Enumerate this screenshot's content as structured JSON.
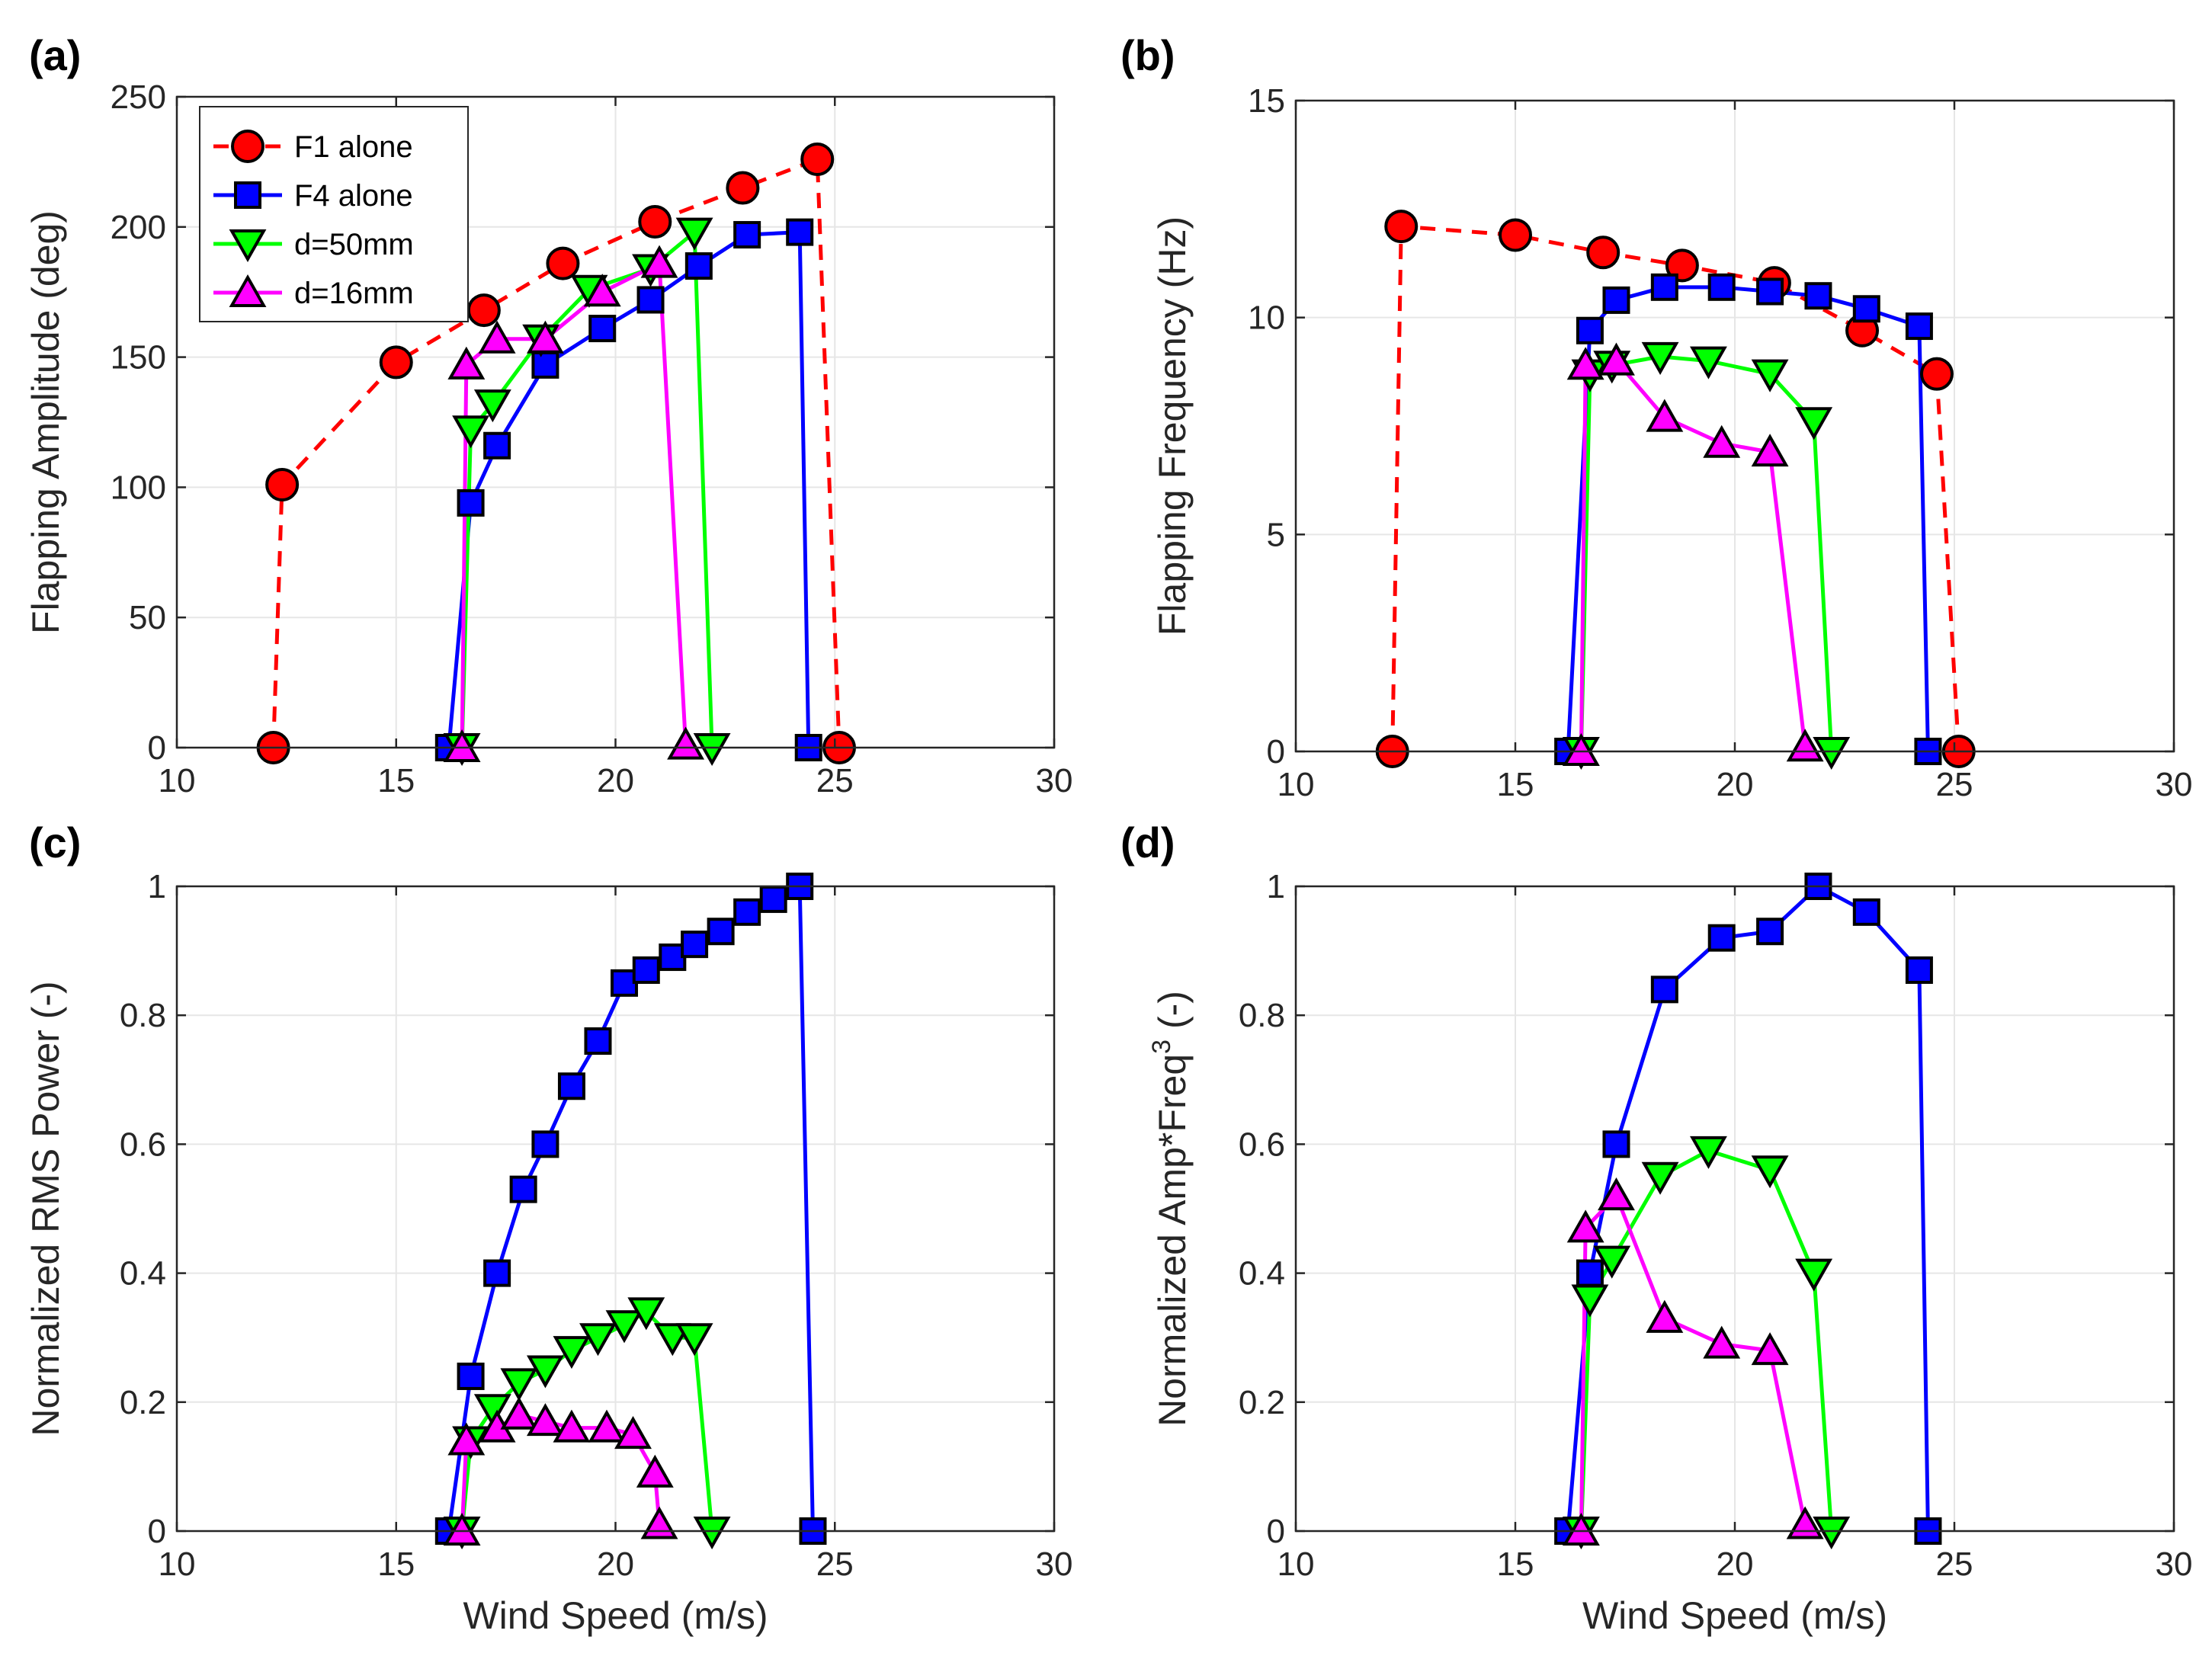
{
  "colors": {
    "F1": "#ff0000",
    "F4": "#0000ff",
    "d50": "#00ff00",
    "d16": "#ff00ff",
    "marker_edge": "#000000",
    "grid": "#e6e6e6"
  },
  "legend": {
    "location": "top-left",
    "panel": "a"
  },
  "chart_data": [
    {
      "panel_label": "(a)",
      "type": "line",
      "xlabel": "",
      "ylabel": "Flapping Amplitude (deg)",
      "xlim": [
        10,
        30
      ],
      "ylim": [
        0,
        250
      ],
      "xticks": [
        "10",
        "15",
        "20",
        "25",
        "30"
      ],
      "yticks": [
        "0",
        "50",
        "100",
        "150",
        "200",
        "250"
      ],
      "grid": true,
      "series": [
        {
          "name": "F1 alone",
          "key": "F1",
          "marker": "circle",
          "line": "dashed",
          "x": [
            12.2,
            12.4,
            15.0,
            17.0,
            18.8,
            20.9,
            22.9,
            24.6,
            25.1
          ],
          "y": [
            0,
            101,
            148,
            168,
            186,
            202,
            215,
            226,
            0
          ]
        },
        {
          "name": "F4 alone",
          "key": "F4",
          "marker": "square",
          "line": "solid",
          "x": [
            16.2,
            16.7,
            17.3,
            18.4,
            19.7,
            20.8,
            21.9,
            23.0,
            24.2,
            24.4
          ],
          "y": [
            0,
            94,
            116,
            147,
            161,
            172,
            185,
            197,
            198,
            0
          ]
        },
        {
          "name": "d=50mm",
          "key": "d50",
          "marker": "triangle-down",
          "line": "solid",
          "x": [
            16.5,
            16.7,
            17.2,
            18.3,
            19.4,
            20.8,
            21.8,
            22.2
          ],
          "y": [
            0,
            122,
            132,
            157,
            176,
            184,
            198,
            0
          ]
        },
        {
          "name": "d=16mm",
          "key": "d16",
          "marker": "triangle-up",
          "line": "solid",
          "x": [
            16.5,
            16.6,
            17.3,
            18.4,
            19.7,
            21.0,
            21.6
          ],
          "y": [
            0,
            147,
            157,
            157,
            175,
            186,
            1
          ]
        }
      ]
    },
    {
      "panel_label": "(b)",
      "type": "line",
      "xlabel": "",
      "ylabel": "Flapping Frequency (Hz)",
      "xlim": [
        10,
        30
      ],
      "ylim": [
        0,
        15
      ],
      "xticks": [
        "10",
        "15",
        "20",
        "25",
        "30"
      ],
      "yticks": [
        "0",
        "5",
        "10",
        "15"
      ],
      "grid": true,
      "series": [
        {
          "name": "F1 alone",
          "key": "F1",
          "marker": "circle",
          "line": "dashed",
          "x": [
            12.2,
            12.4,
            15.0,
            17.0,
            18.8,
            20.9,
            22.9,
            24.6,
            25.1
          ],
          "y": [
            0,
            12.1,
            11.9,
            11.5,
            11.2,
            10.8,
            9.7,
            8.7,
            0
          ]
        },
        {
          "name": "F4 alone",
          "key": "F4",
          "marker": "square",
          "line": "solid",
          "x": [
            16.2,
            16.7,
            17.3,
            18.4,
            19.7,
            20.8,
            21.9,
            23.0,
            24.2,
            24.4
          ],
          "y": [
            0,
            9.7,
            10.4,
            10.7,
            10.7,
            10.6,
            10.5,
            10.2,
            9.8,
            0
          ]
        },
        {
          "name": "d=50mm",
          "key": "d50",
          "marker": "triangle-down",
          "line": "solid",
          "x": [
            16.5,
            16.7,
            17.2,
            18.3,
            19.4,
            20.8,
            21.8,
            22.2
          ],
          "y": [
            0,
            8.7,
            8.9,
            9.1,
            9.0,
            8.7,
            7.6,
            0
          ]
        },
        {
          "name": "d=16mm",
          "key": "d16",
          "marker": "triangle-up",
          "line": "solid",
          "x": [
            16.5,
            16.6,
            17.3,
            18.4,
            19.7,
            20.8,
            21.6
          ],
          "y": [
            0,
            8.9,
            9.0,
            7.7,
            7.1,
            6.9,
            0.1
          ]
        }
      ]
    },
    {
      "panel_label": "(c)",
      "type": "line",
      "xlabel": "Wind Speed (m/s)",
      "ylabel": "Normalized RMS Power (-)",
      "xlim": [
        10,
        30
      ],
      "ylim": [
        0,
        1
      ],
      "xticks": [
        "10",
        "15",
        "20",
        "25",
        "30"
      ],
      "yticks": [
        "0",
        "0.2",
        "0.4",
        "0.6",
        "0.8",
        "1"
      ],
      "grid": true,
      "series": [
        {
          "name": "F4 alone",
          "key": "F4",
          "marker": "square",
          "line": "solid",
          "x": [
            16.2,
            16.7,
            17.3,
            17.9,
            18.4,
            19.0,
            19.6,
            20.2,
            20.7,
            21.3,
            21.8,
            22.4,
            23.0,
            23.6,
            24.2,
            24.5
          ],
          "y": [
            0,
            0.24,
            0.4,
            0.53,
            0.6,
            0.69,
            0.76,
            0.85,
            0.87,
            0.89,
            0.91,
            0.93,
            0.96,
            0.98,
            1.0,
            0
          ]
        },
        {
          "name": "d=50mm",
          "key": "d50",
          "marker": "triangle-down",
          "line": "solid",
          "x": [
            16.5,
            16.7,
            17.2,
            17.8,
            18.4,
            19.0,
            19.6,
            20.2,
            20.7,
            21.3,
            21.8,
            22.2
          ],
          "y": [
            0,
            0.14,
            0.19,
            0.23,
            0.25,
            0.28,
            0.3,
            0.32,
            0.34,
            0.3,
            0.3,
            0
          ]
        },
        {
          "name": "d=16mm",
          "key": "d16",
          "marker": "triangle-up",
          "line": "solid",
          "x": [
            16.5,
            16.6,
            17.3,
            17.8,
            18.4,
            19.0,
            19.8,
            20.4,
            20.9,
            21.0
          ],
          "y": [
            0,
            0.14,
            0.16,
            0.18,
            0.17,
            0.16,
            0.16,
            0.15,
            0.09,
            0.01
          ]
        }
      ]
    },
    {
      "panel_label": "(d)",
      "type": "line",
      "xlabel": "Wind Speed (m/s)",
      "ylabel_main": "Normalized Amp*Freq",
      "ylabel_sup": "3",
      "ylabel_tail": " (-)",
      "xlim": [
        10,
        30
      ],
      "ylim": [
        0,
        1
      ],
      "xticks": [
        "10",
        "15",
        "20",
        "25",
        "30"
      ],
      "yticks": [
        "0",
        "0.2",
        "0.4",
        "0.6",
        "0.8",
        "1"
      ],
      "grid": true,
      "series": [
        {
          "name": "F4 alone",
          "key": "F4",
          "marker": "square",
          "line": "solid",
          "x": [
            16.2,
            16.7,
            17.3,
            18.4,
            19.7,
            20.8,
            21.9,
            23.0,
            24.2,
            24.4
          ],
          "y": [
            0,
            0.4,
            0.6,
            0.84,
            0.92,
            0.93,
            1.0,
            0.96,
            0.87,
            0
          ]
        },
        {
          "name": "d=50mm",
          "key": "d50",
          "marker": "triangle-down",
          "line": "solid",
          "x": [
            16.5,
            16.7,
            17.2,
            18.3,
            19.4,
            20.8,
            21.8,
            22.2
          ],
          "y": [
            0,
            0.36,
            0.42,
            0.55,
            0.59,
            0.56,
            0.4,
            0
          ]
        },
        {
          "name": "d=16mm",
          "key": "d16",
          "marker": "triangle-up",
          "line": "solid",
          "x": [
            16.5,
            16.6,
            17.3,
            18.4,
            19.7,
            20.8,
            21.6
          ],
          "y": [
            0,
            0.47,
            0.52,
            0.33,
            0.29,
            0.28,
            0.01
          ]
        }
      ]
    }
  ]
}
